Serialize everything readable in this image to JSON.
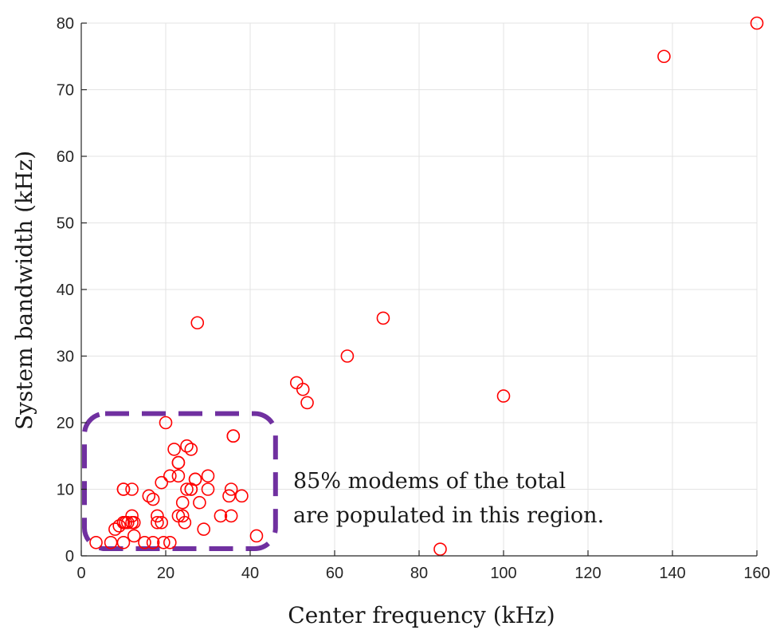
{
  "chart_data": {
    "type": "scatter",
    "xlabel": "Center frequency (kHz)",
    "ylabel": "System bandwidth (kHz)",
    "xlim": [
      0,
      160
    ],
    "ylim": [
      0,
      80
    ],
    "xticks": [
      0,
      20,
      40,
      60,
      80,
      100,
      120,
      140,
      160
    ],
    "yticks": [
      0,
      10,
      20,
      30,
      40,
      50,
      60,
      70,
      80
    ],
    "grid": true,
    "marker": "open-circle",
    "color": "#ff0000",
    "region_color": "#7030a0",
    "annotation": {
      "line1": "85% modems of the total",
      "line2": "are populated in this region."
    },
    "region": {
      "x": [
        0,
        46
      ],
      "y": [
        0,
        21
      ]
    },
    "points": [
      [
        160,
        80
      ],
      [
        138,
        75
      ],
      [
        27.5,
        35
      ],
      [
        71.5,
        35.7
      ],
      [
        63,
        30
      ],
      [
        51,
        26
      ],
      [
        52.5,
        25
      ],
      [
        53.5,
        23
      ],
      [
        100,
        24
      ],
      [
        85,
        1
      ],
      [
        41.5,
        3
      ],
      [
        20,
        20
      ],
      [
        36,
        18
      ],
      [
        36,
        18
      ],
      [
        25,
        16.5
      ],
      [
        26,
        16
      ],
      [
        22,
        16
      ],
      [
        23,
        14
      ],
      [
        23,
        14
      ],
      [
        27,
        11.5
      ],
      [
        27,
        11.5
      ],
      [
        23,
        12
      ],
      [
        21,
        12
      ],
      [
        30,
        12
      ],
      [
        19,
        11
      ],
      [
        26,
        10
      ],
      [
        25,
        10
      ],
      [
        26,
        10
      ],
      [
        30,
        10
      ],
      [
        35.5,
        10
      ],
      [
        10,
        10
      ],
      [
        10,
        10
      ],
      [
        12,
        10
      ],
      [
        16,
        9
      ],
      [
        17,
        8.5
      ],
      [
        35,
        9
      ],
      [
        38,
        9
      ],
      [
        24,
        8
      ],
      [
        28,
        8
      ],
      [
        12,
        6
      ],
      [
        18,
        6
      ],
      [
        23,
        6
      ],
      [
        24,
        6
      ],
      [
        33,
        6
      ],
      [
        35.5,
        6
      ],
      [
        11,
        5
      ],
      [
        12,
        5
      ],
      [
        12.5,
        5
      ],
      [
        10,
        5
      ],
      [
        10.5,
        5
      ],
      [
        10,
        5
      ],
      [
        18,
        5
      ],
      [
        19,
        5
      ],
      [
        24.5,
        5
      ],
      [
        8,
        4
      ],
      [
        9,
        4.5
      ],
      [
        29,
        4
      ],
      [
        12.5,
        3
      ],
      [
        7,
        2
      ],
      [
        3.5,
        2
      ],
      [
        10,
        2
      ],
      [
        15,
        2
      ],
      [
        17,
        2
      ],
      [
        19.5,
        2
      ],
      [
        21,
        2
      ]
    ]
  }
}
